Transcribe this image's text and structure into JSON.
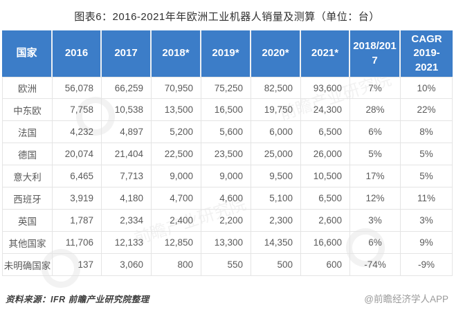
{
  "title": "图表6：2016-2021年年欧洲工业机器人销量及测算（单位：台）",
  "colors": {
    "header_bg": "#3c7dc8",
    "header_text": "#ffffff",
    "body_text": "#5a5a5a",
    "grid_border": "#e4e4e4",
    "title_text": "#303030",
    "source_text": "#3f3f3f",
    "credit_text": "#9a9a9a"
  },
  "chart_data": {
    "type": "table",
    "title": "图表6：2016-2021年年欧洲工业机器人销量及测算（单位：台）",
    "unit": "台",
    "columns": [
      "国家",
      "2016",
      "2017",
      "2018*",
      "2019*",
      "2020*",
      "2021*",
      "2018/2017",
      "CAGR 2019-2021"
    ],
    "rows": [
      [
        "欧洲",
        "56,078",
        "66,259",
        "70,950",
        "75,250",
        "82,500",
        "93,600",
        "7%",
        "10%"
      ],
      [
        "中东欧",
        "7,758",
        "10,538",
        "13,500",
        "16,500",
        "19,750",
        "24,300",
        "28%",
        "22%"
      ],
      [
        "法国",
        "4,232",
        "4,897",
        "5,200",
        "5,600",
        "6,000",
        "6,500",
        "6%",
        "8%"
      ],
      [
        "德国",
        "20,074",
        "21,404",
        "22,500",
        "23,500",
        "25,000",
        "26,000",
        "5%",
        "5%"
      ],
      [
        "意大利",
        "6,465",
        "7,713",
        "9,000",
        "9,000",
        "9,500",
        "10,500",
        "17%",
        "5%"
      ],
      [
        "西班牙",
        "3,919",
        "4,180",
        "4,700",
        "4,600",
        "5,100",
        "6,500",
        "12%",
        "11%"
      ],
      [
        "英国",
        "1,787",
        "2,334",
        "2,400",
        "2,200",
        "2,300",
        "2,600",
        "3%",
        "3%"
      ],
      [
        "其他国家",
        "11,706",
        "12,133",
        "12,850",
        "13,300",
        "14,350",
        "16,600",
        "6%",
        "9%"
      ],
      [
        "未明确国家",
        "137",
        "3,060",
        "800",
        "550",
        "500",
        "600",
        "-74%",
        "-9%"
      ]
    ]
  },
  "footer": {
    "source": "资料来源：IFR  前瞻产业研究院整理",
    "credit": "@前瞻经济学人APP"
  },
  "watermark": {
    "text": "前瞻产业研究院"
  }
}
